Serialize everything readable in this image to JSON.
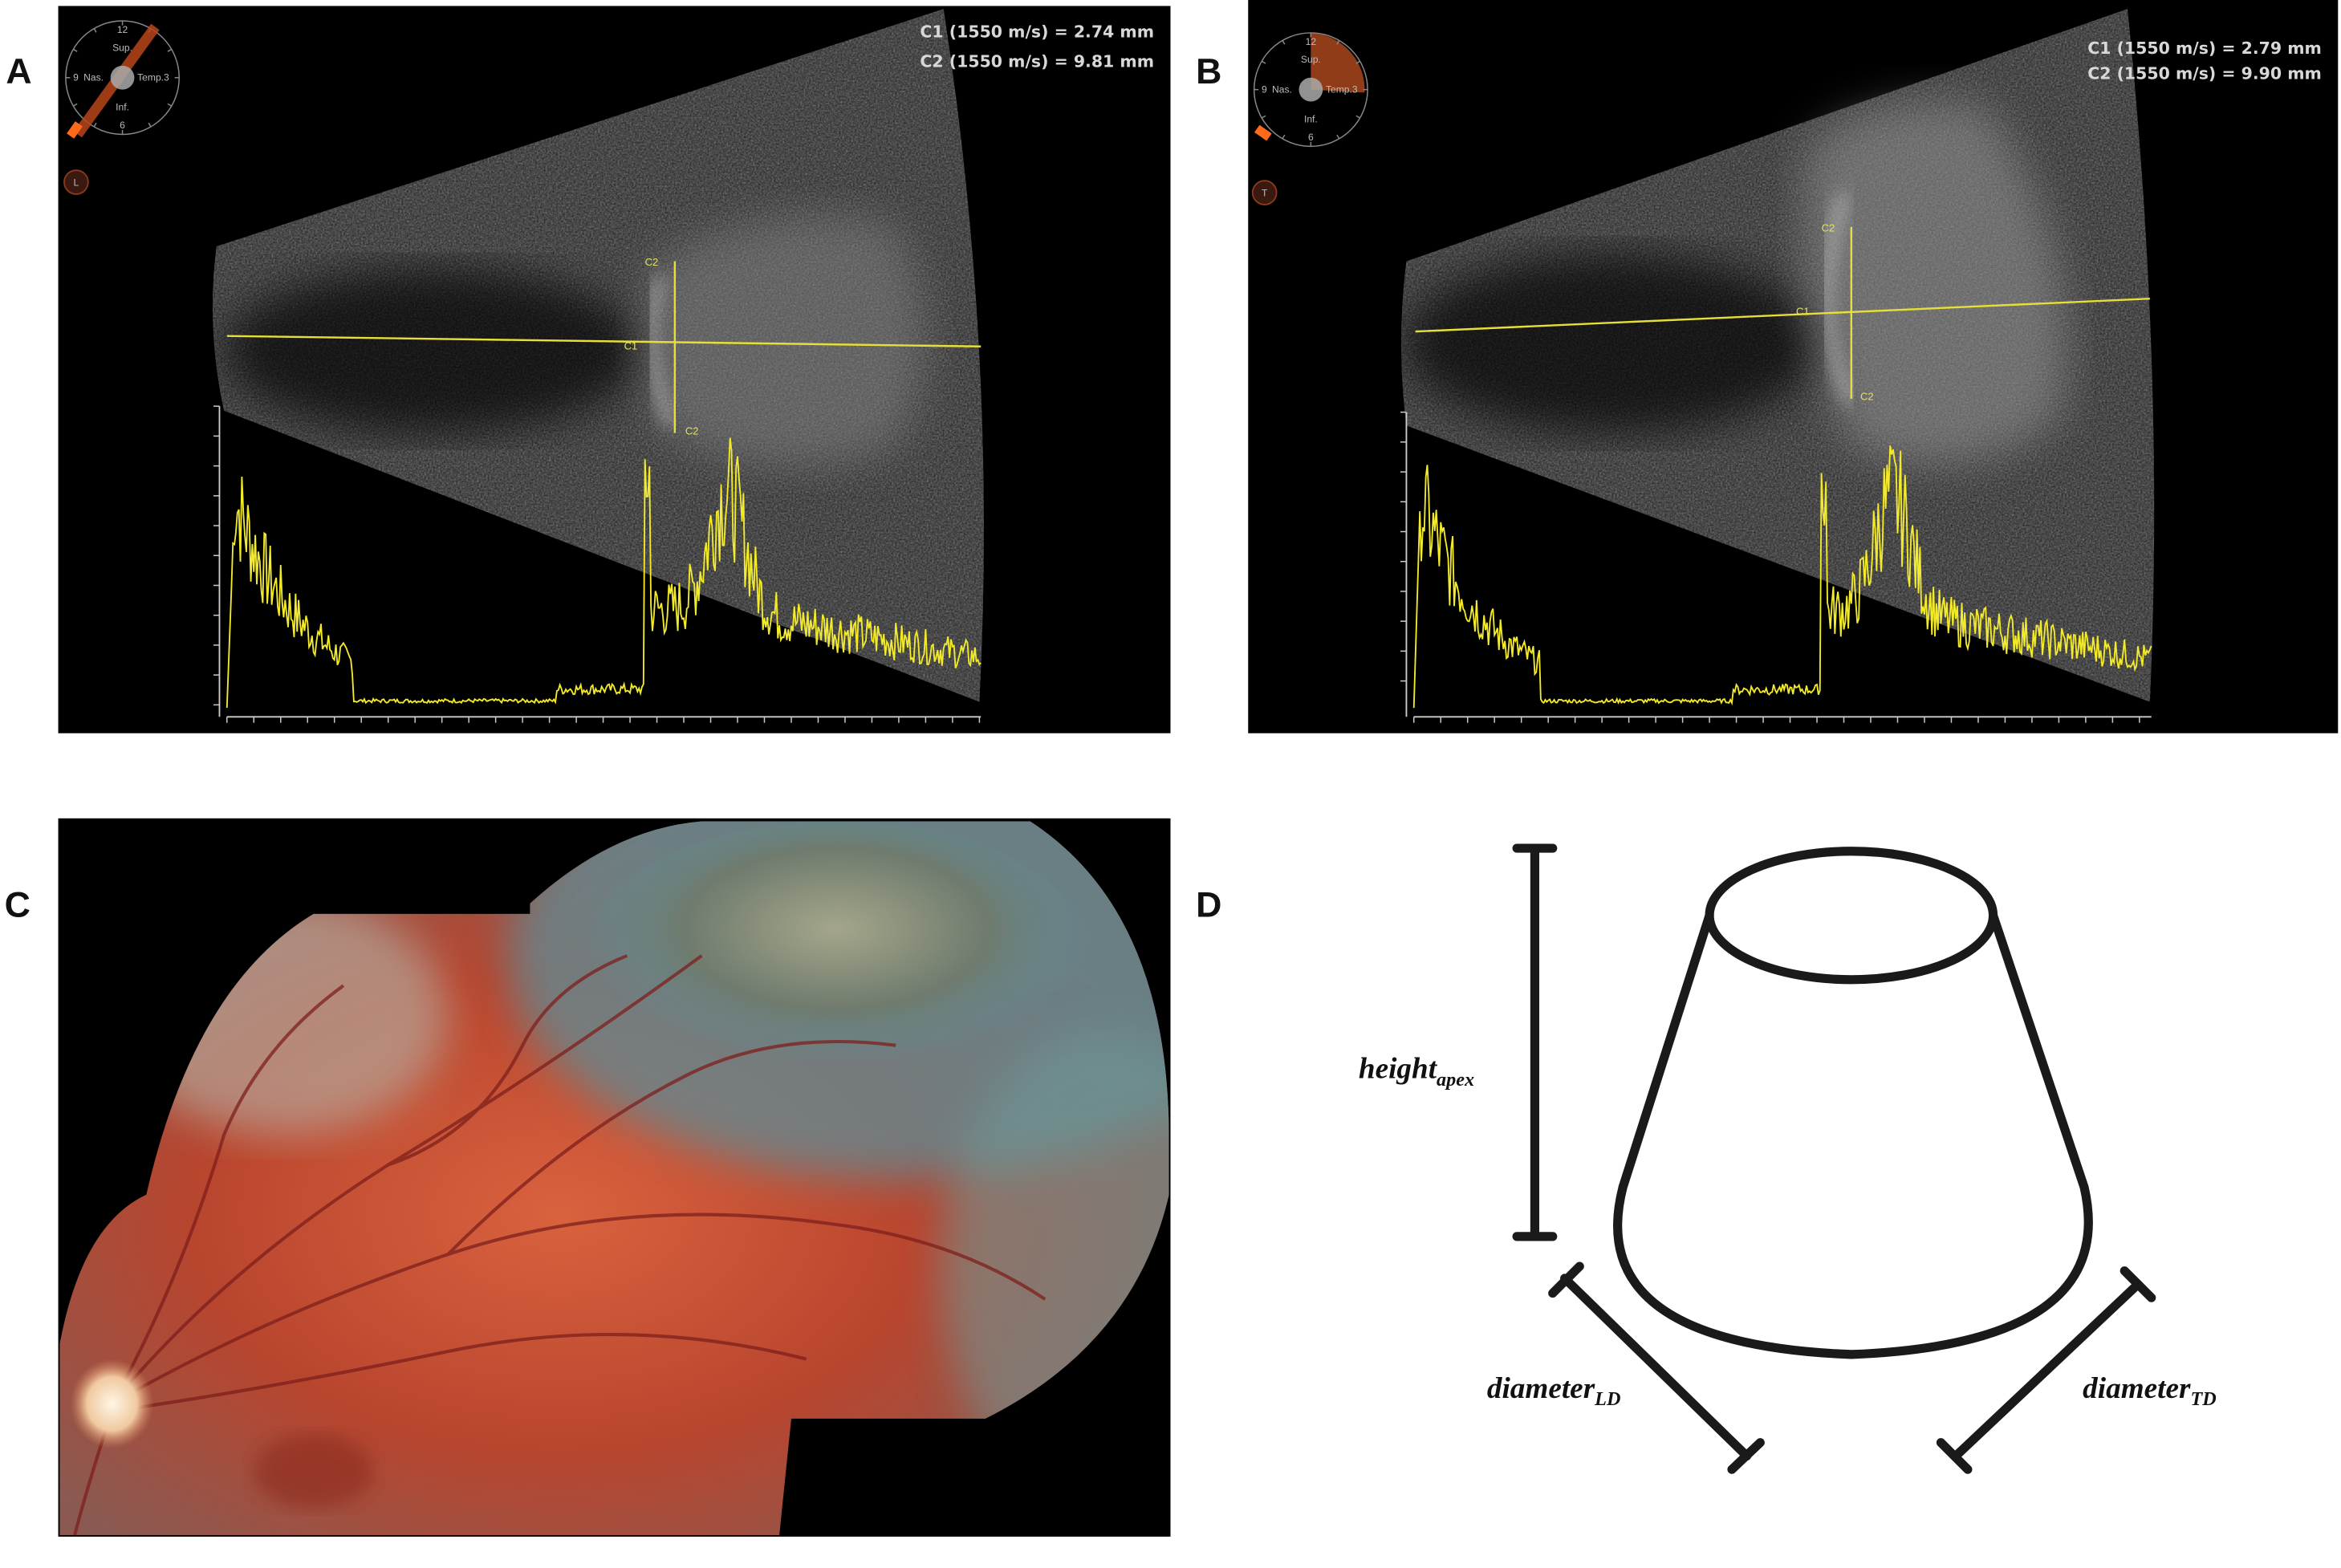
{
  "panels": [
    {
      "label": "A",
      "measurements": [
        "C1 (1550 m/s) = 2.74 mm",
        "C2 (1550 m/s) = 9.81 mm"
      ],
      "compass": {
        "top": "12",
        "top_label": "Sup.",
        "left": "9",
        "left_label": "Nas.",
        "right_label": "Temp.3",
        "bottom_label": "Inf.",
        "bottom": "6",
        "eye": "L"
      },
      "calipers": [
        "C1",
        "C2"
      ]
    },
    {
      "label": "B",
      "measurements": [
        "C1 (1550 m/s) = 2.79 mm",
        "C2 (1550 m/s) = 9.90 mm"
      ],
      "compass": {
        "top": "12",
        "top_label": "Sup.",
        "left": "9",
        "left_label": "Nas.",
        "right_label": "Temp.3",
        "bottom_label": "Inf.",
        "bottom": "6",
        "eye": "T"
      },
      "calipers": [
        "C1",
        "C2"
      ]
    },
    {
      "label": "C"
    },
    {
      "label": "D",
      "height": {
        "text": "height",
        "sub": "apex"
      },
      "diameter_ld": {
        "text": "diameter",
        "sub": "LD"
      },
      "diameter_td": {
        "text": "diameter",
        "sub": "TD"
      }
    }
  ]
}
